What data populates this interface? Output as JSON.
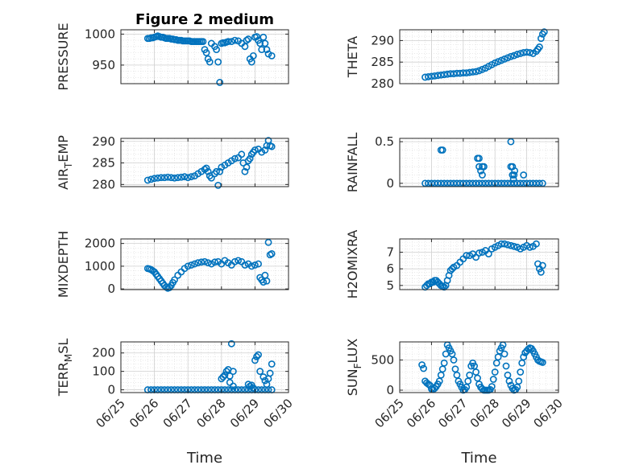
{
  "title": "Figure 2 medium",
  "colors": {
    "marker": "#0072BD",
    "axis": "#262626",
    "grid": "#dadada"
  },
  "chart_data": [
    {
      "type": "scatter",
      "ylabel_main": "PRESSURE",
      "ylabel_sub": "",
      "yticks": [
        950,
        1000
      ],
      "ytick_labels": [
        "950",
        "1000"
      ],
      "ylim": [
        920,
        1007
      ],
      "x": [
        0.8,
        0.85,
        0.9,
        0.95,
        1.0,
        1.05,
        1.1,
        1.15,
        1.2,
        1.25,
        1.3,
        1.35,
        1.4,
        1.45,
        1.5,
        1.55,
        1.6,
        1.65,
        1.7,
        1.75,
        1.8,
        1.85,
        1.9,
        1.95,
        2.0,
        2.05,
        2.1,
        2.15,
        2.2,
        2.25,
        2.3,
        2.35,
        2.4,
        2.45,
        2.5,
        2.55,
        2.6,
        2.65,
        2.7,
        2.8,
        2.85,
        2.9,
        2.95,
        3.0,
        3.05,
        3.1,
        3.15,
        3.2,
        3.3,
        3.4,
        3.5,
        3.6,
        3.7,
        3.75,
        3.8,
        3.85,
        3.9,
        3.95,
        4.0,
        4.05,
        4.1,
        4.15,
        4.2,
        4.25,
        4.3,
        4.35,
        4.4,
        4.5
      ],
      "y": [
        993,
        993,
        994,
        994,
        995,
        996,
        997,
        996,
        995,
        995,
        994,
        993,
        993,
        993,
        992,
        992,
        991,
        991,
        990,
        990,
        990,
        989,
        989,
        989,
        989,
        989,
        988,
        988,
        988,
        988,
        988,
        988,
        988,
        988,
        975,
        970,
        960,
        955,
        985,
        980,
        975,
        955,
        922,
        985,
        986,
        986,
        987,
        988,
        988,
        990,
        989,
        985,
        980,
        990,
        992,
        960,
        955,
        965,
        995,
        996,
        990,
        985,
        975,
        995,
        985,
        975,
        968,
        965
      ]
    },
    {
      "type": "scatter",
      "ylabel_main": "THETA",
      "ylabel_sub": "",
      "yticks": [
        280,
        285,
        290
      ],
      "ytick_labels": [
        "280",
        "285",
        "290"
      ],
      "ylim": [
        280,
        292.5
      ],
      "x": [
        0.8,
        0.9,
        1.0,
        1.1,
        1.2,
        1.3,
        1.4,
        1.5,
        1.6,
        1.7,
        1.8,
        1.9,
        2.0,
        2.1,
        2.2,
        2.3,
        2.4,
        2.5,
        2.6,
        2.7,
        2.8,
        2.9,
        3.0,
        3.1,
        3.2,
        3.3,
        3.4,
        3.5,
        3.6,
        3.7,
        3.8,
        3.9,
        4.0,
        4.1,
        4.2,
        4.3,
        4.35,
        4.4,
        4.45,
        4.5,
        4.55
      ],
      "y": [
        281.5,
        281.6,
        281.7,
        281.8,
        281.9,
        282,
        282.1,
        282.2,
        282.3,
        282.3,
        282.4,
        282.4,
        282.5,
        282.5,
        282.6,
        282.7,
        282.8,
        283,
        283.3,
        283.6,
        284,
        284.4,
        284.8,
        285.1,
        285.4,
        285.7,
        286,
        286.3,
        286.5,
        286.8,
        287,
        287.2,
        287.3,
        287.2,
        287.0,
        287.5,
        288,
        288.5,
        290.5,
        291.5,
        292
      ]
    },
    {
      "type": "scatter",
      "ylabel_main": "AIR",
      "ylabel_sub": "T",
      "ylabel_end": "EMP",
      "yticks": [
        280,
        285,
        290
      ],
      "ytick_labels": [
        "280",
        "285",
        "290"
      ],
      "ylim": [
        279.5,
        290.7
      ],
      "x": [
        0.8,
        0.9,
        1.0,
        1.1,
        1.2,
        1.3,
        1.4,
        1.5,
        1.6,
        1.7,
        1.8,
        1.9,
        2.0,
        2.1,
        2.2,
        2.3,
        2.4,
        2.5,
        2.55,
        2.6,
        2.65,
        2.7,
        2.8,
        2.85,
        2.9,
        2.95,
        3.0,
        3.1,
        3.2,
        3.3,
        3.4,
        3.5,
        3.6,
        3.65,
        3.7,
        3.75,
        3.8,
        3.85,
        3.9,
        3.95,
        4.0,
        4.1,
        4.2,
        4.3,
        4.35,
        4.4,
        4.45,
        4.5
      ],
      "y": [
        281,
        281.2,
        281.4,
        281.5,
        281.6,
        281.6,
        281.7,
        281.6,
        281.5,
        281.6,
        281.7,
        281.8,
        281.6,
        281.8,
        282,
        282.5,
        283,
        283.5,
        283.8,
        283,
        282,
        281.5,
        282.5,
        283,
        279.8,
        283,
        284,
        284.5,
        285,
        285.5,
        286,
        286.2,
        287,
        285,
        283,
        284,
        285.5,
        286,
        287,
        287.5,
        288,
        288.2,
        287.5,
        288,
        289,
        290.2,
        289,
        288.8
      ]
    },
    {
      "type": "scatter",
      "ylabel_main": "RAINFALL",
      "ylabel_sub": "",
      "yticks": [
        0,
        0.5
      ],
      "ytick_labels": [
        "0",
        "0.5"
      ],
      "ylim": [
        -0.04,
        0.54
      ],
      "x": [
        0.8,
        0.9,
        1.0,
        1.1,
        1.2,
        1.3,
        1.4,
        1.5,
        1.6,
        1.7,
        1.8,
        1.9,
        2.0,
        2.1,
        2.2,
        2.3,
        2.4,
        2.5,
        2.6,
        2.7,
        2.8,
        2.9,
        3.0,
        3.1,
        3.2,
        3.3,
        3.4,
        3.5,
        3.6,
        3.7,
        3.8,
        3.9,
        4.0,
        4.1,
        4.2,
        4.3,
        4.4,
        4.5,
        1.3,
        1.35,
        2.45,
        2.5,
        2.55,
        2.6,
        2.6,
        2.65,
        2.5,
        3.5,
        3.5,
        3.55,
        3.55,
        3.6,
        3.58,
        3.62,
        3.9
      ],
      "y": [
        0,
        0,
        0,
        0,
        0,
        0,
        0,
        0,
        0,
        0,
        0,
        0,
        0,
        0,
        0,
        0,
        0,
        0,
        0,
        0,
        0,
        0,
        0,
        0,
        0,
        0,
        0,
        0,
        0,
        0,
        0,
        0,
        0,
        0,
        0,
        0,
        0,
        0,
        0.4,
        0.4,
        0.3,
        0.2,
        0.15,
        0.2,
        0.1,
        0.2,
        0.3,
        0.2,
        0.5,
        0.1,
        0.2,
        0.1,
        0.05,
        0.15,
        0.1
      ]
    },
    {
      "type": "scatter",
      "ylabel_main": "MIXDEPTH",
      "ylabel_sub": "",
      "yticks": [
        0,
        1000,
        2000
      ],
      "ytick_labels": [
        "0",
        "1000",
        "2000"
      ],
      "ylim": [
        -30,
        2200
      ],
      "x": [
        0.8,
        0.85,
        0.9,
        0.95,
        1.0,
        1.05,
        1.1,
        1.15,
        1.2,
        1.25,
        1.3,
        1.35,
        1.4,
        1.45,
        1.5,
        1.55,
        1.6,
        1.7,
        1.8,
        1.9,
        2.0,
        2.1,
        2.2,
        2.3,
        2.4,
        2.5,
        2.6,
        2.7,
        2.8,
        2.9,
        3.0,
        3.1,
        3.2,
        3.3,
        3.4,
        3.5,
        3.6,
        3.7,
        3.8,
        3.9,
        4.0,
        4.1,
        4.15,
        4.2,
        4.25,
        4.3,
        4.35,
        4.4,
        4.45,
        4.5
      ],
      "y": [
        900,
        880,
        850,
        800,
        750,
        650,
        550,
        450,
        350,
        250,
        150,
        80,
        30,
        60,
        150,
        280,
        400,
        600,
        750,
        900,
        1000,
        1050,
        1100,
        1150,
        1180,
        1200,
        1150,
        1100,
        1180,
        1200,
        1100,
        1250,
        1150,
        1050,
        1200,
        1250,
        1200,
        1050,
        1100,
        1000,
        1050,
        1100,
        500,
        400,
        300,
        600,
        350,
        2050,
        1500,
        1550
      ]
    },
    {
      "type": "scatter",
      "ylabel_main": "H2OMIXRA",
      "ylabel_sub": "",
      "yticks": [
        5,
        6,
        7
      ],
      "ytick_labels": [
        "5",
        "6",
        "7"
      ],
      "ylim": [
        4.75,
        7.8
      ],
      "x": [
        0.8,
        0.85,
        0.9,
        0.95,
        1.0,
        1.05,
        1.1,
        1.15,
        1.2,
        1.25,
        1.3,
        1.35,
        1.4,
        1.45,
        1.5,
        1.55,
        1.6,
        1.65,
        1.7,
        1.8,
        1.9,
        2.0,
        2.1,
        2.2,
        2.3,
        2.4,
        2.5,
        2.6,
        2.7,
        2.8,
        2.9,
        3.0,
        3.1,
        3.2,
        3.3,
        3.4,
        3.5,
        3.6,
        3.7,
        3.8,
        3.9,
        4.0,
        4.1,
        4.2,
        4.3,
        4.35,
        4.4,
        4.45,
        4.5
      ],
      "y": [
        4.9,
        5.0,
        5.1,
        5.1,
        5.2,
        5.2,
        5.3,
        5.3,
        5.2,
        5.1,
        5.0,
        4.95,
        4.9,
        5.0,
        5.3,
        5.6,
        5.9,
        6.0,
        6.1,
        6.2,
        6.4,
        6.6,
        6.8,
        6.8,
        6.9,
        6.7,
        6.95,
        7.0,
        7.1,
        6.9,
        7.2,
        7.3,
        7.4,
        7.5,
        7.5,
        7.45,
        7.4,
        7.35,
        7.3,
        7.2,
        7.3,
        7.4,
        7.3,
        7.35,
        7.5,
        6.3,
        6.0,
        5.8,
        6.2
      ]
    },
    {
      "type": "scatter",
      "ylabel_main": "TERR",
      "ylabel_sub": "M",
      "ylabel_end": "SL",
      "yticks": [
        0,
        100,
        200
      ],
      "ytick_labels": [
        "0",
        "100",
        "200"
      ],
      "ylim": [
        -15,
        260
      ],
      "x": [
        0.8,
        0.9,
        1.0,
        1.1,
        1.2,
        1.3,
        1.4,
        1.5,
        1.6,
        1.7,
        1.8,
        1.9,
        2.0,
        2.1,
        2.2,
        2.3,
        2.4,
        2.5,
        2.6,
        2.7,
        2.8,
        2.9,
        3.0,
        3.1,
        3.2,
        3.3,
        3.4,
        3.5,
        3.6,
        3.7,
        3.8,
        3.9,
        4.0,
        4.1,
        4.2,
        4.3,
        4.4,
        4.5,
        3.0,
        3.05,
        3.1,
        3.15,
        3.2,
        3.25,
        3.3,
        3.35,
        3.25,
        3.35,
        3.8,
        3.85,
        3.9,
        3.95,
        4.0,
        4.05,
        4.1,
        4.15,
        4.25,
        4.3,
        4.35,
        4.4,
        4.45,
        4.5
      ],
      "y": [
        0,
        0,
        0,
        0,
        0,
        0,
        0,
        0,
        0,
        0,
        0,
        0,
        0,
        0,
        0,
        0,
        0,
        0,
        0,
        0,
        0,
        0,
        0,
        0,
        0,
        0,
        0,
        0,
        0,
        0,
        0,
        0,
        0,
        0,
        0,
        0,
        0,
        0,
        60,
        70,
        80,
        100,
        110,
        75,
        250,
        100,
        40,
        20,
        30,
        20,
        25,
        10,
        160,
        180,
        190,
        100,
        70,
        50,
        30,
        60,
        90,
        140
      ]
    },
    {
      "type": "scatter",
      "ylabel_main": "SUN",
      "ylabel_sub": "F",
      "ylabel_end": "LUX",
      "yticks": [
        0,
        500
      ],
      "ytick_labels": [
        "0",
        "500"
      ],
      "ylim": [
        -40,
        800
      ],
      "x": [
        0.7,
        0.75,
        0.8,
        0.85,
        0.9,
        0.95,
        1.0,
        1.05,
        1.1,
        1.15,
        1.2,
        1.25,
        1.3,
        1.35,
        1.4,
        1.45,
        1.5,
        1.55,
        1.6,
        1.65,
        1.7,
        1.75,
        1.8,
        1.85,
        1.9,
        1.95,
        2.0,
        2.05,
        2.1,
        2.15,
        2.2,
        2.25,
        2.3,
        2.35,
        2.4,
        2.45,
        2.5,
        2.55,
        2.6,
        2.65,
        2.7,
        2.75,
        2.8,
        2.85,
        2.9,
        2.95,
        3.0,
        3.05,
        3.1,
        3.15,
        3.2,
        3.25,
        3.3,
        3.35,
        3.4,
        3.45,
        3.5,
        3.55,
        3.6,
        3.65,
        3.7,
        3.75,
        3.8,
        3.85,
        3.9,
        3.95,
        4.0,
        4.05,
        4.1,
        4.15,
        4.2,
        4.25,
        4.3,
        4.35,
        4.4,
        4.45,
        4.5
      ],
      "y": [
        420,
        360,
        150,
        120,
        100,
        80,
        20,
        10,
        30,
        60,
        100,
        150,
        250,
        350,
        450,
        600,
        750,
        700,
        650,
        600,
        500,
        350,
        250,
        150,
        100,
        50,
        0,
        10,
        50,
        150,
        250,
        400,
        450,
        400,
        300,
        200,
        100,
        50,
        20,
        0,
        0,
        0,
        0,
        10,
        60,
        180,
        300,
        450,
        550,
        650,
        700,
        750,
        600,
        400,
        250,
        150,
        80,
        30,
        0,
        10,
        50,
        150,
        300,
        450,
        550,
        620,
        650,
        680,
        700,
        690,
        650,
        600,
        550,
        500,
        480,
        470,
        460
      ]
    }
  ],
  "xaxis": {
    "label": "Time",
    "ticks": [
      0,
      1,
      2,
      3,
      4,
      5
    ],
    "tick_labels": [
      "06/25",
      "06/26",
      "06/27",
      "06/28",
      "06/29",
      "06/30"
    ],
    "xlim": [
      0,
      5
    ]
  }
}
